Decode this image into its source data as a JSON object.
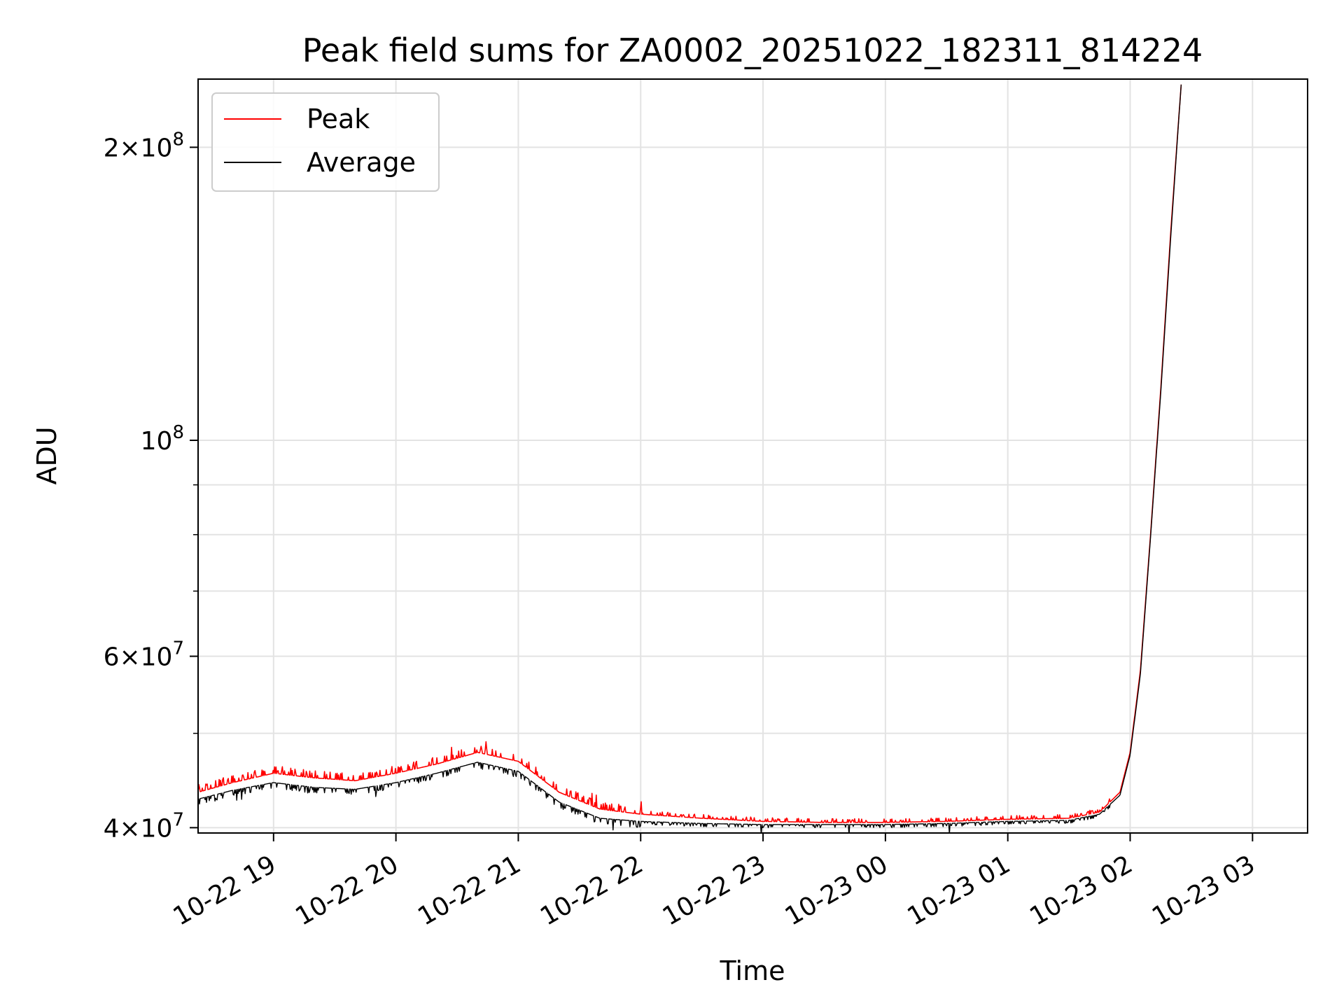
{
  "chart_data": {
    "type": "line",
    "title": "Peak field sums for ZA0002_20251022_182311_814224",
    "xlabel": "Time",
    "ylabel": "ADU",
    "yscale": "log",
    "grid": true,
    "legend_placement": "top-left",
    "xlim": [
      "2025-10-22 18:23",
      "2025-10-23 03:27"
    ],
    "ylim": [
      39500000,
      235000000
    ],
    "x_ticks": [
      {
        "time": "2025-10-22 19:00",
        "label": "10-22 19"
      },
      {
        "time": "2025-10-22 20:00",
        "label": "10-22 20"
      },
      {
        "time": "2025-10-22 21:00",
        "label": "10-22 21"
      },
      {
        "time": "2025-10-22 22:00",
        "label": "10-22 22"
      },
      {
        "time": "2025-10-22 23:00",
        "label": "10-22 23"
      },
      {
        "time": "2025-10-23 00:00",
        "label": "10-23 00"
      },
      {
        "time": "2025-10-23 01:00",
        "label": "10-23 01"
      },
      {
        "time": "2025-10-23 02:00",
        "label": "10-23 02"
      },
      {
        "time": "2025-10-23 03:00",
        "label": "10-23 03"
      }
    ],
    "y_major_ticks": [
      {
        "value": 40000000,
        "base": "4",
        "exp": "7"
      },
      {
        "value": 60000000,
        "base": "6",
        "exp": "7"
      },
      {
        "value": 100000000,
        "base": "",
        "exp": "8"
      },
      {
        "value": 200000000,
        "base": "2",
        "exp": "8"
      }
    ],
    "y_minor_ticks": [
      50000000,
      70000000,
      80000000,
      90000000
    ],
    "series": [
      {
        "name": "Peak",
        "color": "#ff0000",
        "x": [
          "2025-10-22 18:23",
          "2025-10-22 18:40",
          "2025-10-22 19:00",
          "2025-10-22 19:20",
          "2025-10-22 19:40",
          "2025-10-22 20:00",
          "2025-10-22 20:20",
          "2025-10-22 20:40",
          "2025-10-22 21:00",
          "2025-10-22 21:20",
          "2025-10-22 21:40",
          "2025-10-22 22:00",
          "2025-10-22 22:30",
          "2025-10-22 23:00",
          "2025-10-22 23:30",
          "2025-10-23 00:00",
          "2025-10-23 00:30",
          "2025-10-23 01:00",
          "2025-10-23 01:30",
          "2025-10-23 01:45",
          "2025-10-23 01:55",
          "2025-10-23 02:00",
          "2025-10-23 02:05",
          "2025-10-23 02:10",
          "2025-10-23 02:15",
          "2025-10-23 02:20",
          "2025-10-23 02:25"
        ],
        "values": [
          43500000,
          44500000,
          45500000,
          45000000,
          44700000,
          45500000,
          46500000,
          47800000,
          46800000,
          43500000,
          41800000,
          41300000,
          40900000,
          40600000,
          40500000,
          40500000,
          40600000,
          40800000,
          40900000,
          41500000,
          43500000,
          47800000,
          58000000,
          80000000,
          113000000,
          165000000,
          232000000
        ]
      },
      {
        "name": "Average",
        "color": "#000000",
        "x": [
          "2025-10-22 18:23",
          "2025-10-22 18:40",
          "2025-10-22 19:00",
          "2025-10-22 19:20",
          "2025-10-22 19:40",
          "2025-10-22 20:00",
          "2025-10-22 20:20",
          "2025-10-22 20:40",
          "2025-10-22 21:00",
          "2025-10-22 21:20",
          "2025-10-22 21:40",
          "2025-10-22 22:00",
          "2025-10-22 22:30",
          "2025-10-22 23:00",
          "2025-10-22 23:30",
          "2025-10-23 00:00",
          "2025-10-23 00:30",
          "2025-10-23 01:00",
          "2025-10-23 01:30",
          "2025-10-23 01:45",
          "2025-10-23 01:55",
          "2025-10-23 02:00",
          "2025-10-23 02:05",
          "2025-10-23 02:10",
          "2025-10-23 02:15",
          "2025-10-23 02:20",
          "2025-10-23 02:25"
        ],
        "values": [
          42800000,
          43700000,
          44500000,
          44000000,
          43800000,
          44500000,
          45500000,
          46700000,
          45700000,
          42500000,
          40900000,
          40600000,
          40400000,
          40300000,
          40300000,
          40300000,
          40400000,
          40600000,
          40700000,
          41300000,
          43200000,
          47500000,
          57500000,
          79500000,
          112000000,
          163000000,
          232000000
        ]
      }
    ]
  }
}
